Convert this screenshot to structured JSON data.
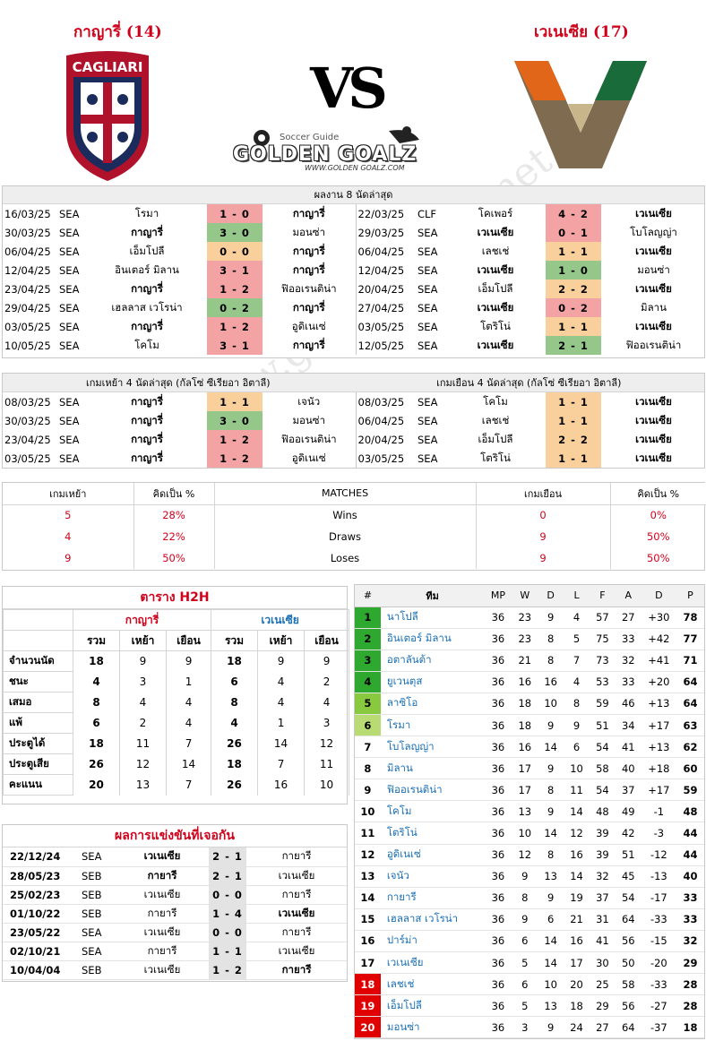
{
  "header": {
    "home_name": "กาญารี่ (14)",
    "away_name": "เวเนเซีย (17)",
    "home_logo_text": "CAGLIARI",
    "vs": "VS",
    "site_sub": "Soccer Guide",
    "site_main": "GOLDEN GOALZ",
    "site_url": "WWW.GOLDEN GOALZ.COM",
    "watermark": "www.golden-goalz.net"
  },
  "last8": {
    "title": "ผลงาน 8 นัดล่าสุด",
    "home": [
      {
        "date": "16/03/25",
        "league": "SEA",
        "left": "โรมา",
        "score": "1 - 0",
        "right": "กาญารี่",
        "res": "L",
        "bold": "right"
      },
      {
        "date": "30/03/25",
        "league": "SEA",
        "left": "กาญารี่",
        "score": "3 - 0",
        "right": "มอนซ่า",
        "res": "W",
        "bold": "left"
      },
      {
        "date": "06/04/25",
        "league": "SEA",
        "left": "เอ็มโปลี",
        "score": "0 - 0",
        "right": "กาญารี่",
        "res": "D",
        "bold": "right"
      },
      {
        "date": "12/04/25",
        "league": "SEA",
        "left": "อินเตอร์ มิลาน",
        "score": "3 - 1",
        "right": "กาญารี่",
        "res": "L",
        "bold": "right"
      },
      {
        "date": "23/04/25",
        "league": "SEA",
        "left": "กาญารี่",
        "score": "1 - 2",
        "right": "ฟิออเรนติน่า",
        "res": "L",
        "bold": "left"
      },
      {
        "date": "29/04/25",
        "league": "SEA",
        "left": "เฮลลาส เวโรน่า",
        "score": "0 - 2",
        "right": "กาญารี่",
        "res": "W",
        "bold": "right"
      },
      {
        "date": "03/05/25",
        "league": "SEA",
        "left": "กาญารี่",
        "score": "1 - 2",
        "right": "อูดิเนเซ่",
        "res": "L",
        "bold": "left"
      },
      {
        "date": "10/05/25",
        "league": "SEA",
        "left": "โคโม",
        "score": "3 - 1",
        "right": "กาญารี่",
        "res": "L",
        "bold": "right"
      }
    ],
    "away": [
      {
        "date": "22/03/25",
        "league": "CLF",
        "left": "โคเพอร์",
        "score": "4 - 2",
        "right": "เวเนเซีย",
        "res": "L",
        "bold": "right"
      },
      {
        "date": "29/03/25",
        "league": "SEA",
        "left": "เวเนเซีย",
        "score": "0 - 1",
        "right": "โบโลญญ่า",
        "res": "L",
        "bold": "left"
      },
      {
        "date": "06/04/25",
        "league": "SEA",
        "left": "เลชเช่",
        "score": "1 - 1",
        "right": "เวเนเซีย",
        "res": "D",
        "bold": "right"
      },
      {
        "date": "12/04/25",
        "league": "SEA",
        "left": "เวเนเซีย",
        "score": "1 - 0",
        "right": "มอนซ่า",
        "res": "W",
        "bold": "left"
      },
      {
        "date": "20/04/25",
        "league": "SEA",
        "left": "เอ็มโปลี",
        "score": "2 - 2",
        "right": "เวเนเซีย",
        "res": "D",
        "bold": "right"
      },
      {
        "date": "27/04/25",
        "league": "SEA",
        "left": "เวเนเซีย",
        "score": "0 - 2",
        "right": "มิลาน",
        "res": "L",
        "bold": "left"
      },
      {
        "date": "03/05/25",
        "league": "SEA",
        "left": "โตริโน่",
        "score": "1 - 1",
        "right": "เวเนเซีย",
        "res": "D",
        "bold": "right"
      },
      {
        "date": "12/05/25",
        "league": "SEA",
        "left": "เวเนเซีย",
        "score": "2 - 1",
        "right": "ฟิออเรนติน่า",
        "res": "W",
        "bold": "left"
      }
    ]
  },
  "venue4": {
    "home_title": "เกมเหย้า 4 นัดล่าสุด (กัลโซ่ ซีเรียอา อิตาลี)",
    "away_title": "เกมเยือน 4 นัดล่าสุด (กัลโซ่ ซีเรียอา อิตาลี)",
    "home": [
      {
        "date": "08/03/25",
        "league": "SEA",
        "left": "กาญารี่",
        "score": "1 - 1",
        "right": "เจนัว",
        "res": "D",
        "bold": "left"
      },
      {
        "date": "30/03/25",
        "league": "SEA",
        "left": "กาญารี่",
        "score": "3 - 0",
        "right": "มอนซ่า",
        "res": "W",
        "bold": "left"
      },
      {
        "date": "23/04/25",
        "league": "SEA",
        "left": "กาญารี่",
        "score": "1 - 2",
        "right": "ฟิออเรนติน่า",
        "res": "L",
        "bold": "left"
      },
      {
        "date": "03/05/25",
        "league": "SEA",
        "left": "กาญารี่",
        "score": "1 - 2",
        "right": "อูดิเนเซ่",
        "res": "L",
        "bold": "left"
      }
    ],
    "away": [
      {
        "date": "08/03/25",
        "league": "SEA",
        "left": "โคโม",
        "score": "1 - 1",
        "right": "เวเนเซีย",
        "res": "D",
        "bold": "right"
      },
      {
        "date": "06/04/25",
        "league": "SEA",
        "left": "เลชเช่",
        "score": "1 - 1",
        "right": "เวเนเซีย",
        "res": "D",
        "bold": "right"
      },
      {
        "date": "20/04/25",
        "league": "SEA",
        "left": "เอ็มโปลี",
        "score": "2 - 2",
        "right": "เวเนเซีย",
        "res": "D",
        "bold": "right"
      },
      {
        "date": "03/05/25",
        "league": "SEA",
        "left": "โตริโน่",
        "score": "1 - 1",
        "right": "เวเนเซีย",
        "res": "D",
        "bold": "right"
      }
    ]
  },
  "stats": {
    "headers": [
      "เกมเหย้า",
      "คิดเป็น %",
      "MATCHES",
      "เกมเยือน",
      "คิดเป็น %"
    ],
    "rows": [
      {
        "home": "5",
        "home_pct": "28%",
        "label": "Wins",
        "away": "0",
        "away_pct": "0%"
      },
      {
        "home": "4",
        "home_pct": "22%",
        "label": "Draws",
        "away": "9",
        "away_pct": "50%"
      },
      {
        "home": "9",
        "home_pct": "50%",
        "label": "Loses",
        "away": "9",
        "away_pct": "50%"
      }
    ]
  },
  "h2h": {
    "title": "ตาราง H2H",
    "home": "กาญารี่",
    "away": "เวเนเซีย",
    "cols": [
      "รวม",
      "เหย้า",
      "เยือน",
      "รวม",
      "เหย้า",
      "เยือน"
    ],
    "rows": [
      {
        "label": "จำนวนนัด",
        "v": [
          "18",
          "9",
          "9",
          "18",
          "9",
          "9"
        ]
      },
      {
        "label": "ชนะ",
        "v": [
          "4",
          "3",
          "1",
          "6",
          "4",
          "2"
        ]
      },
      {
        "label": "เสมอ",
        "v": [
          "8",
          "4",
          "4",
          "8",
          "4",
          "4"
        ]
      },
      {
        "label": "แพ้",
        "v": [
          "6",
          "2",
          "4",
          "4",
          "1",
          "3"
        ]
      },
      {
        "label": "ประตูได้",
        "v": [
          "18",
          "11",
          "7",
          "26",
          "14",
          "12"
        ]
      },
      {
        "label": "ประตูเสีย",
        "v": [
          "26",
          "12",
          "14",
          "18",
          "7",
          "11"
        ]
      },
      {
        "label": "คะแนน",
        "v": [
          "20",
          "13",
          "7",
          "26",
          "16",
          "10"
        ]
      }
    ]
  },
  "meetings": {
    "title": "ผลการแข่งขันที่เจอกัน",
    "rows": [
      {
        "date": "22/12/24",
        "league": "SEA",
        "left": "เวเนเซีย",
        "score": "2 - 1",
        "right": "กายารี",
        "bold": "left"
      },
      {
        "date": "28/05/23",
        "league": "SEB",
        "left": "กายารี",
        "score": "2 - 1",
        "right": "เวเนเซีย",
        "bold": "left"
      },
      {
        "date": "25/02/23",
        "league": "SEB",
        "left": "เวเนเซีย",
        "score": "0 - 0",
        "right": "กายารี",
        "bold": ""
      },
      {
        "date": "01/10/22",
        "league": "SEB",
        "left": "กายารี",
        "score": "1 - 4",
        "right": "เวเนเซีย",
        "bold": "right"
      },
      {
        "date": "23/05/22",
        "league": "SEA",
        "left": "เวเนเซีย",
        "score": "0 - 0",
        "right": "กายารี",
        "bold": ""
      },
      {
        "date": "02/10/21",
        "league": "SEA",
        "left": "กายารี",
        "score": "1 - 1",
        "right": "เวเนเซีย",
        "bold": ""
      },
      {
        "date": "10/04/04",
        "league": "SEB",
        "left": "เวเนเซีย",
        "score": "1 - 2",
        "right": "กายารี",
        "bold": "right"
      }
    ]
  },
  "league": {
    "headers": [
      "#",
      "ทีม",
      "MP",
      "W",
      "D",
      "L",
      "F",
      "A",
      "D",
      "P"
    ],
    "rows": [
      {
        "pos": "1",
        "team": "นาโปลี",
        "mp": "36",
        "w": "23",
        "d": "9",
        "l": "4",
        "f": "57",
        "a": "27",
        "gd": "+30",
        "p": "78",
        "zone": "cl"
      },
      {
        "pos": "2",
        "team": "อินเตอร์ มิลาน",
        "mp": "36",
        "w": "23",
        "d": "8",
        "l": "5",
        "f": "75",
        "a": "33",
        "gd": "+42",
        "p": "77",
        "zone": "cl"
      },
      {
        "pos": "3",
        "team": "อตาลันต้า",
        "mp": "36",
        "w": "21",
        "d": "8",
        "l": "7",
        "f": "73",
        "a": "32",
        "gd": "+41",
        "p": "71",
        "zone": "cl"
      },
      {
        "pos": "4",
        "team": "ยูเวนตุส",
        "mp": "36",
        "w": "16",
        "d": "16",
        "l": "4",
        "f": "53",
        "a": "33",
        "gd": "+20",
        "p": "64",
        "zone": "cl"
      },
      {
        "pos": "5",
        "team": "ลาซิโอ",
        "mp": "36",
        "w": "18",
        "d": "10",
        "l": "8",
        "f": "59",
        "a": "46",
        "gd": "+13",
        "p": "64",
        "zone": "el"
      },
      {
        "pos": "6",
        "team": "โรมา",
        "mp": "36",
        "w": "18",
        "d": "9",
        "l": "9",
        "f": "51",
        "a": "34",
        "gd": "+17",
        "p": "63",
        "zone": "ecl"
      },
      {
        "pos": "7",
        "team": "โบโลญญ่า",
        "mp": "36",
        "w": "16",
        "d": "14",
        "l": "6",
        "f": "54",
        "a": "41",
        "gd": "+13",
        "p": "62",
        "zone": ""
      },
      {
        "pos": "8",
        "team": "มิลาน",
        "mp": "36",
        "w": "17",
        "d": "9",
        "l": "10",
        "f": "58",
        "a": "40",
        "gd": "+18",
        "p": "60",
        "zone": ""
      },
      {
        "pos": "9",
        "team": "ฟิออเรนติน่า",
        "mp": "36",
        "w": "17",
        "d": "8",
        "l": "11",
        "f": "54",
        "a": "37",
        "gd": "+17",
        "p": "59",
        "zone": ""
      },
      {
        "pos": "10",
        "team": "โคโม",
        "mp": "36",
        "w": "13",
        "d": "9",
        "l": "14",
        "f": "48",
        "a": "49",
        "gd": "-1",
        "p": "48",
        "zone": ""
      },
      {
        "pos": "11",
        "team": "โตริโน่",
        "mp": "36",
        "w": "10",
        "d": "14",
        "l": "12",
        "f": "39",
        "a": "42",
        "gd": "-3",
        "p": "44",
        "zone": ""
      },
      {
        "pos": "12",
        "team": "อูดิเนเซ่",
        "mp": "36",
        "w": "12",
        "d": "8",
        "l": "16",
        "f": "39",
        "a": "51",
        "gd": "-12",
        "p": "44",
        "zone": ""
      },
      {
        "pos": "13",
        "team": "เจนัว",
        "mp": "36",
        "w": "9",
        "d": "13",
        "l": "14",
        "f": "32",
        "a": "45",
        "gd": "-13",
        "p": "40",
        "zone": ""
      },
      {
        "pos": "14",
        "team": "กายารี",
        "mp": "36",
        "w": "8",
        "d": "9",
        "l": "19",
        "f": "37",
        "a": "54",
        "gd": "-17",
        "p": "33",
        "zone": ""
      },
      {
        "pos": "15",
        "team": "เฮลลาส เวโรน่า",
        "mp": "36",
        "w": "9",
        "d": "6",
        "l": "21",
        "f": "31",
        "a": "64",
        "gd": "-33",
        "p": "33",
        "zone": ""
      },
      {
        "pos": "16",
        "team": "ปาร์ม่า",
        "mp": "36",
        "w": "6",
        "d": "14",
        "l": "16",
        "f": "41",
        "a": "56",
        "gd": "-15",
        "p": "32",
        "zone": ""
      },
      {
        "pos": "17",
        "team": "เวเนเซีย",
        "mp": "36",
        "w": "5",
        "d": "14",
        "l": "17",
        "f": "30",
        "a": "50",
        "gd": "-20",
        "p": "29",
        "zone": ""
      },
      {
        "pos": "18",
        "team": "เลชเช่",
        "mp": "36",
        "w": "6",
        "d": "10",
        "l": "20",
        "f": "25",
        "a": "58",
        "gd": "-33",
        "p": "28",
        "zone": "rel"
      },
      {
        "pos": "19",
        "team": "เอ็มโปลี",
        "mp": "36",
        "w": "5",
        "d": "13",
        "l": "18",
        "f": "29",
        "a": "56",
        "gd": "-27",
        "p": "28",
        "zone": "rel"
      },
      {
        "pos": "20",
        "team": "มอนซ่า",
        "mp": "36",
        "w": "3",
        "d": "9",
        "l": "24",
        "f": "27",
        "a": "64",
        "gd": "-37",
        "p": "18",
        "zone": "rel"
      }
    ]
  },
  "colors": {
    "loss": "#f3a3a3",
    "win": "#95c78b",
    "draw": "#f9cf9c",
    "home_accent": "#d0021b",
    "away_accent": "#1a6fb5",
    "cl_zone": "#2ea82e",
    "el_zone": "#88c940",
    "ecl_zone": "#b8dc73",
    "relegation": "#e00000"
  }
}
